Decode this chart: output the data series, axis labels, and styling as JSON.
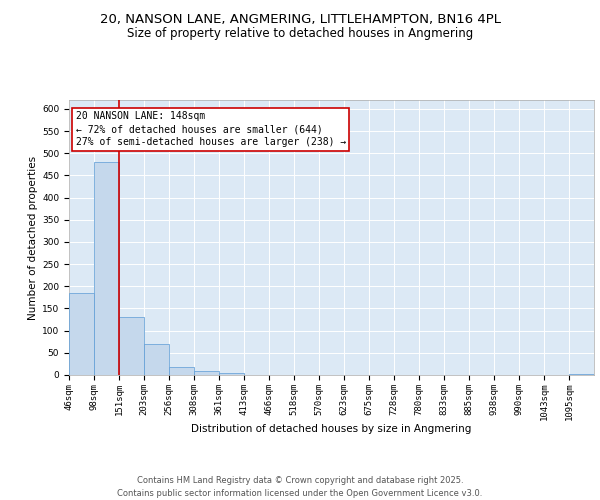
{
  "title_line1": "20, NANSON LANE, ANGMERING, LITTLEHAMPTON, BN16 4PL",
  "title_line2": "Size of property relative to detached houses in Angmering",
  "xlabel": "Distribution of detached houses by size in Angmering",
  "ylabel": "Number of detached properties",
  "bar_values": [
    185,
    480,
    130,
    70,
    18,
    8,
    4,
    1,
    0,
    0,
    0,
    0,
    0,
    0,
    0,
    0,
    0,
    0,
    0,
    0,
    3
  ],
  "bar_labels": [
    "46sqm",
    "98sqm",
    "151sqm",
    "203sqm",
    "256sqm",
    "308sqm",
    "361sqm",
    "413sqm",
    "466sqm",
    "518sqm",
    "570sqm",
    "623sqm",
    "675sqm",
    "728sqm",
    "780sqm",
    "833sqm",
    "885sqm",
    "938sqm",
    "990sqm",
    "1043sqm",
    "1095sqm"
  ],
  "bin_edges": [
    46,
    98,
    151,
    203,
    256,
    308,
    361,
    413,
    466,
    518,
    570,
    623,
    675,
    728,
    780,
    833,
    885,
    938,
    990,
    1043,
    1095
  ],
  "bar_color": "#c5d8ec",
  "bar_edge_color": "#5b9bd5",
  "vline_x": 151,
  "vline_color": "#cc0000",
  "annotation_title": "20 NANSON LANE: 148sqm",
  "annotation_line1": "← 72% of detached houses are smaller (644)",
  "annotation_line2": "27% of semi-detached houses are larger (238) →",
  "annotation_box_color": "#ffffff",
  "annotation_box_edge": "#cc0000",
  "ylim": [
    0,
    620
  ],
  "yticks": [
    0,
    50,
    100,
    150,
    200,
    250,
    300,
    350,
    400,
    450,
    500,
    550,
    600
  ],
  "plot_bg_color": "#dce9f5",
  "footer_line1": "Contains HM Land Registry data © Crown copyright and database right 2025.",
  "footer_line2": "Contains public sector information licensed under the Open Government Licence v3.0.",
  "title_fontsize": 9.5,
  "subtitle_fontsize": 8.5,
  "axis_label_fontsize": 7.5,
  "tick_fontsize": 6.5,
  "annotation_fontsize": 7,
  "footer_fontsize": 6
}
